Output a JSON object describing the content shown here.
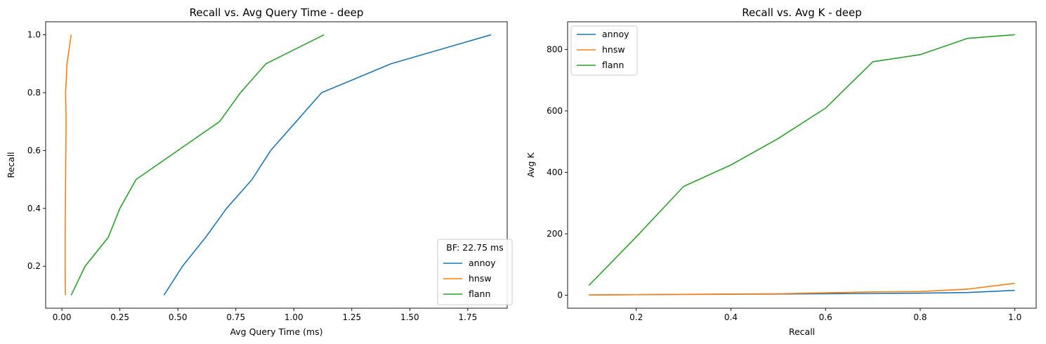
{
  "chart_data": [
    {
      "type": "line",
      "title": "Recall vs. Avg Query Time - deep",
      "xlabel": "Avg Query Time (ms)",
      "ylabel": "Recall",
      "xlim": [
        -0.07,
        1.92
      ],
      "ylim": [
        0.055,
        1.045
      ],
      "xticks": [
        "0.00",
        "0.25",
        "0.50",
        "0.75",
        "1.00",
        "1.25",
        "1.50",
        "1.75"
      ],
      "xtick_values": [
        0,
        0.25,
        0.5,
        0.75,
        1.0,
        1.25,
        1.5,
        1.75
      ],
      "yticks": [
        "0.2",
        "0.4",
        "0.6",
        "0.8",
        "1.0"
      ],
      "ytick_values": [
        0.2,
        0.4,
        0.6,
        0.8,
        1.0
      ],
      "grid": false,
      "legend_title": "BF: 22.75 ms",
      "legend_position": "lower right",
      "series": [
        {
          "name": "annoy",
          "color": "#1f77b4",
          "x": [
            0.44,
            0.52,
            0.62,
            0.71,
            0.82,
            0.9,
            1.01,
            1.12,
            1.42,
            1.85
          ],
          "y": [
            0.1,
            0.2,
            0.3,
            0.4,
            0.5,
            0.6,
            0.7,
            0.8,
            0.9,
            1.0
          ]
        },
        {
          "name": "hnsw",
          "color": "#ff7f0e",
          "x": [
            0.015,
            0.014,
            0.014,
            0.015,
            0.016,
            0.017,
            0.018,
            0.016,
            0.022,
            0.04
          ],
          "y": [
            0.1,
            0.2,
            0.3,
            0.4,
            0.5,
            0.6,
            0.7,
            0.8,
            0.9,
            1.0
          ]
        },
        {
          "name": "flann",
          "color": "#2ca02c",
          "x": [
            0.04,
            0.1,
            0.2,
            0.25,
            0.32,
            0.5,
            0.68,
            0.77,
            0.88,
            1.13
          ],
          "y": [
            0.1,
            0.2,
            0.3,
            0.4,
            0.5,
            0.6,
            0.7,
            0.8,
            0.9,
            1.0
          ]
        }
      ]
    },
    {
      "type": "line",
      "title": "Recall vs. Avg K - deep",
      "xlabel": "Recall",
      "ylabel": "Avg K",
      "xlim": [
        0.055,
        1.045
      ],
      "ylim": [
        -42,
        890
      ],
      "xticks": [
        "0.2",
        "0.4",
        "0.6",
        "0.8",
        "1.0"
      ],
      "xtick_values": [
        0.2,
        0.4,
        0.6,
        0.8,
        1.0
      ],
      "yticks": [
        "0",
        "200",
        "400",
        "600",
        "800"
      ],
      "ytick_values": [
        0,
        200,
        400,
        600,
        800
      ],
      "grid": false,
      "legend_position": "upper left",
      "series": [
        {
          "name": "annoy",
          "color": "#1f77b4",
          "x": [
            0.1,
            0.2,
            0.3,
            0.4,
            0.5,
            0.6,
            0.7,
            0.8,
            0.9,
            1.0
          ],
          "y": [
            1,
            2,
            3,
            3.5,
            4,
            5,
            6,
            7,
            9,
            16
          ]
        },
        {
          "name": "hnsw",
          "color": "#ff7f0e",
          "x": [
            0.1,
            0.2,
            0.3,
            0.4,
            0.5,
            0.6,
            0.7,
            0.8,
            0.9,
            1.0
          ],
          "y": [
            1,
            2,
            3,
            4,
            5,
            8,
            11,
            12,
            20,
            39
          ]
        },
        {
          "name": "flann",
          "color": "#2ca02c",
          "x": [
            0.1,
            0.2,
            0.3,
            0.4,
            0.5,
            0.6,
            0.7,
            0.8,
            0.9,
            1.0
          ],
          "y": [
            32,
            190,
            354,
            424,
            510,
            609,
            760,
            783,
            836,
            848
          ]
        }
      ]
    }
  ]
}
